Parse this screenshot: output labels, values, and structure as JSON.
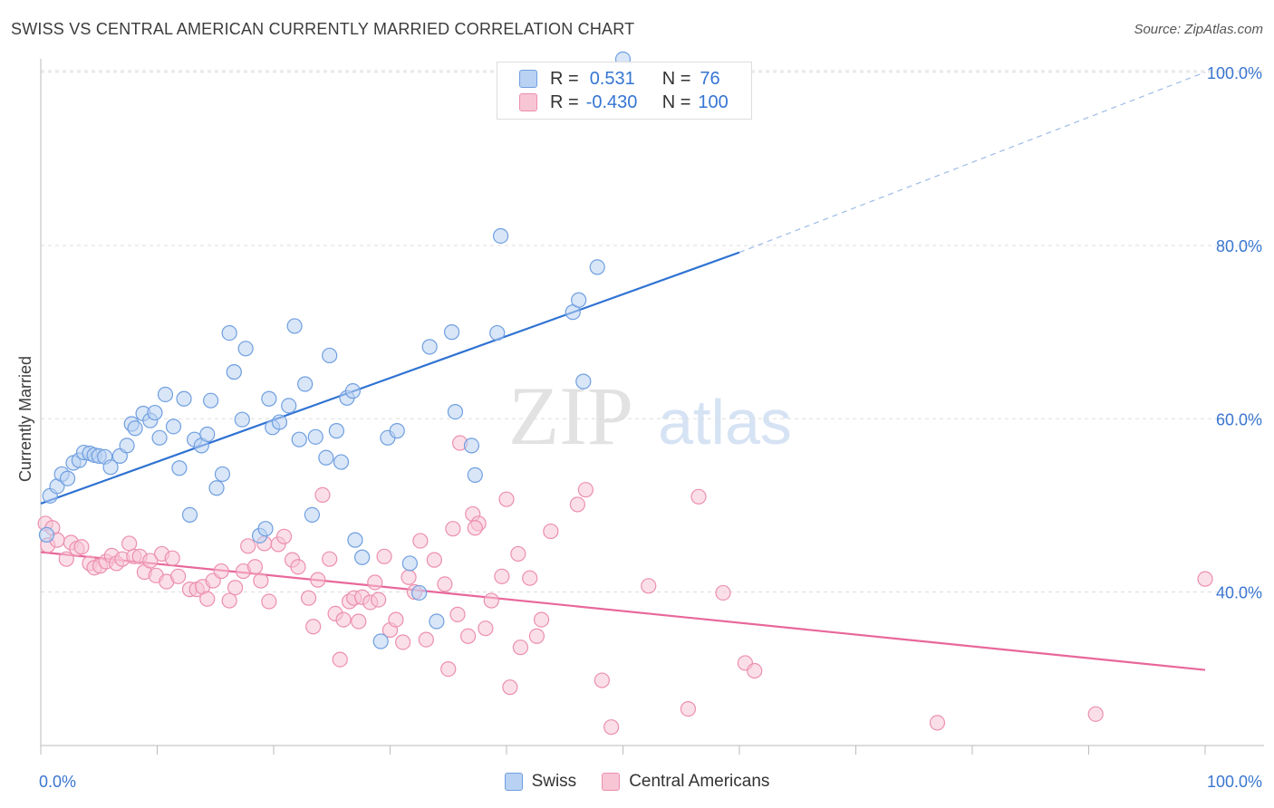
{
  "title": "SWISS VS CENTRAL AMERICAN CURRENTLY MARRIED CORRELATION CHART",
  "source": "Source: ZipAtlas.com",
  "watermark": {
    "zip": "ZIP",
    "atlas": "atlas"
  },
  "legend_box": {
    "rows": [
      {
        "r_label": "R =",
        "r_value": " 0.531",
        "n_label": "N =",
        "n_value": " 76"
      },
      {
        "r_label": "R =",
        "r_value": "-0.430",
        "n_label": "N =",
        "n_value": "100"
      }
    ]
  },
  "bottom_legend": [
    "Swiss",
    "Central Americans"
  ],
  "colors": {
    "swiss_fill": "#b9d1f3",
    "swiss_stroke": "#6f9fe0",
    "swiss_line": "#2f72d2",
    "ca_fill": "#f8c5d5",
    "ca_stroke": "#ec8fae",
    "ca_line": "#e8679a",
    "tick_label": "#3a76d0",
    "grid": "#dddddd"
  },
  "chart_data": {
    "type": "scatter",
    "title": "SWISS VS CENTRAL AMERICAN CURRENTLY MARRIED CORRELATION CHART",
    "xlabel": "",
    "ylabel": "Currently Married",
    "x_tick_labels": [
      "0.0%",
      "100.0%"
    ],
    "y_tick_labels": [
      "40.0%",
      "60.0%",
      "80.0%",
      "100.0%"
    ],
    "xlim": [
      0,
      100
    ],
    "ylim": [
      20,
      102
    ],
    "grid": true,
    "legend": "top-center",
    "series": [
      {
        "name": "Swiss",
        "R": 0.531,
        "N": 76,
        "trend": {
          "x0": 0,
          "y0": 50.2,
          "x1": 60,
          "y1": 79.2,
          "dashed_to_x": 100,
          "dashed_to_y": 100
        },
        "points": [
          [
            0.5,
            46.6
          ],
          [
            0.8,
            51.1
          ],
          [
            1.4,
            52.2
          ],
          [
            1.8,
            53.6
          ],
          [
            2.3,
            53.1
          ],
          [
            2.8,
            54.9
          ],
          [
            3.3,
            55.2
          ],
          [
            3.7,
            56.1
          ],
          [
            4.2,
            56.0
          ],
          [
            4.6,
            55.8
          ],
          [
            5.0,
            55.7
          ],
          [
            5.5,
            55.6
          ],
          [
            6.0,
            54.4
          ],
          [
            6.8,
            55.7
          ],
          [
            7.4,
            56.9
          ],
          [
            7.8,
            59.4
          ],
          [
            8.1,
            58.9
          ],
          [
            8.8,
            60.6
          ],
          [
            9.4,
            59.8
          ],
          [
            9.8,
            60.7
          ],
          [
            10.2,
            57.8
          ],
          [
            10.7,
            62.8
          ],
          [
            11.4,
            59.1
          ],
          [
            11.9,
            54.3
          ],
          [
            12.3,
            62.3
          ],
          [
            12.8,
            48.9
          ],
          [
            13.2,
            57.6
          ],
          [
            13.8,
            56.9
          ],
          [
            14.3,
            58.2
          ],
          [
            14.6,
            62.1
          ],
          [
            15.1,
            52.0
          ],
          [
            15.6,
            53.6
          ],
          [
            16.2,
            69.9
          ],
          [
            16.6,
            65.4
          ],
          [
            17.3,
            59.9
          ],
          [
            17.6,
            68.1
          ],
          [
            18.8,
            46.5
          ],
          [
            19.3,
            47.3
          ],
          [
            19.6,
            62.3
          ],
          [
            19.9,
            59.0
          ],
          [
            20.5,
            59.6
          ],
          [
            21.3,
            61.5
          ],
          [
            21.8,
            70.7
          ],
          [
            22.2,
            57.6
          ],
          [
            22.7,
            64.0
          ],
          [
            23.3,
            48.9
          ],
          [
            23.6,
            57.9
          ],
          [
            24.5,
            55.5
          ],
          [
            24.8,
            67.3
          ],
          [
            25.4,
            58.6
          ],
          [
            25.8,
            55.0
          ],
          [
            26.3,
            62.4
          ],
          [
            26.8,
            63.2
          ],
          [
            27.0,
            46.0
          ],
          [
            27.6,
            44.0
          ],
          [
            29.2,
            34.3
          ],
          [
            29.8,
            57.8
          ],
          [
            30.6,
            58.6
          ],
          [
            31.7,
            43.3
          ],
          [
            32.5,
            39.9
          ],
          [
            33.4,
            68.3
          ],
          [
            34.0,
            36.6
          ],
          [
            35.3,
            70.0
          ],
          [
            35.6,
            60.8
          ],
          [
            37.0,
            56.9
          ],
          [
            37.3,
            53.5
          ],
          [
            39.2,
            69.9
          ],
          [
            39.5,
            81.1
          ],
          [
            45.7,
            72.3
          ],
          [
            46.2,
            73.7
          ],
          [
            46.6,
            64.3
          ],
          [
            47.2,
            100.0
          ],
          [
            47.8,
            77.5
          ],
          [
            50.0,
            101.5
          ],
          [
            48.5,
            100.3
          ],
          [
            51.0,
            99.7
          ]
        ]
      },
      {
        "name": "Central Americans",
        "R": -0.43,
        "N": 100,
        "trend": {
          "x0": 0,
          "y0": 44.6,
          "x1": 100,
          "y1": 31.0
        },
        "points": [
          [
            0.4,
            47.9
          ],
          [
            0.6,
            45.4
          ],
          [
            1.0,
            47.4
          ],
          [
            1.4,
            46.0
          ],
          [
            2.2,
            43.8
          ],
          [
            2.6,
            45.7
          ],
          [
            3.1,
            45.0
          ],
          [
            3.5,
            45.2
          ],
          [
            4.2,
            43.3
          ],
          [
            4.6,
            42.8
          ],
          [
            5.1,
            43.0
          ],
          [
            5.6,
            43.5
          ],
          [
            6.1,
            44.2
          ],
          [
            6.5,
            43.3
          ],
          [
            7.0,
            43.8
          ],
          [
            7.6,
            45.6
          ],
          [
            8.0,
            44.1
          ],
          [
            8.5,
            44.1
          ],
          [
            8.9,
            42.3
          ],
          [
            9.4,
            43.6
          ],
          [
            9.9,
            41.9
          ],
          [
            10.4,
            44.4
          ],
          [
            10.8,
            41.2
          ],
          [
            11.3,
            43.9
          ],
          [
            11.8,
            41.8
          ],
          [
            12.8,
            40.3
          ],
          [
            13.4,
            40.3
          ],
          [
            13.9,
            40.6
          ],
          [
            14.3,
            39.2
          ],
          [
            14.8,
            41.3
          ],
          [
            15.5,
            42.4
          ],
          [
            16.2,
            39.0
          ],
          [
            16.7,
            40.5
          ],
          [
            17.4,
            42.4
          ],
          [
            17.8,
            45.3
          ],
          [
            18.4,
            42.9
          ],
          [
            18.9,
            41.3
          ],
          [
            19.2,
            45.6
          ],
          [
            19.6,
            38.9
          ],
          [
            20.4,
            45.5
          ],
          [
            20.9,
            46.4
          ],
          [
            21.6,
            43.7
          ],
          [
            22.1,
            42.9
          ],
          [
            23.0,
            39.3
          ],
          [
            23.4,
            36.0
          ],
          [
            23.8,
            41.4
          ],
          [
            24.2,
            51.2
          ],
          [
            24.8,
            43.8
          ],
          [
            25.3,
            37.5
          ],
          [
            25.7,
            32.2
          ],
          [
            26.0,
            36.8
          ],
          [
            26.5,
            38.9
          ],
          [
            26.9,
            39.3
          ],
          [
            27.3,
            36.6
          ],
          [
            27.6,
            39.4
          ],
          [
            28.3,
            38.8
          ],
          [
            28.7,
            41.1
          ],
          [
            29.0,
            39.1
          ],
          [
            29.5,
            44.1
          ],
          [
            30.0,
            35.6
          ],
          [
            30.5,
            36.8
          ],
          [
            31.1,
            34.2
          ],
          [
            31.6,
            41.7
          ],
          [
            32.1,
            40.0
          ],
          [
            32.6,
            45.9
          ],
          [
            33.1,
            34.5
          ],
          [
            33.8,
            43.7
          ],
          [
            34.7,
            40.9
          ],
          [
            35.0,
            31.1
          ],
          [
            35.4,
            47.3
          ],
          [
            35.8,
            37.4
          ],
          [
            36.7,
            34.9
          ],
          [
            37.1,
            49.0
          ],
          [
            37.6,
            47.9
          ],
          [
            38.2,
            35.8
          ],
          [
            38.7,
            39.0
          ],
          [
            39.6,
            41.8
          ],
          [
            40.0,
            50.7
          ],
          [
            40.3,
            29.0
          ],
          [
            41.0,
            44.4
          ],
          [
            41.2,
            33.6
          ],
          [
            42.0,
            41.6
          ],
          [
            42.6,
            34.9
          ],
          [
            43.0,
            36.8
          ],
          [
            46.1,
            50.1
          ],
          [
            46.8,
            51.8
          ],
          [
            48.2,
            29.8
          ],
          [
            49.0,
            24.4
          ],
          [
            52.2,
            40.7
          ],
          [
            55.6,
            26.5
          ],
          [
            56.5,
            51.0
          ],
          [
            58.6,
            39.9
          ],
          [
            60.5,
            31.8
          ],
          [
            61.3,
            30.9
          ],
          [
            77.0,
            24.9
          ],
          [
            90.6,
            25.9
          ],
          [
            100.0,
            41.5
          ],
          [
            37.3,
            47.4
          ],
          [
            43.8,
            47.0
          ],
          [
            36.0,
            57.2
          ]
        ]
      }
    ]
  }
}
